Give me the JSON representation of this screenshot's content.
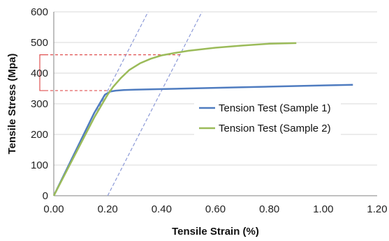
{
  "chart_data": {
    "type": "line",
    "xlabel": "Tensile Strain (%)",
    "ylabel": "Tensile Stress (Mpa)",
    "xlim": [
      0,
      1.2
    ],
    "ylim": [
      0,
      600
    ],
    "x_ticks": [
      "0.00",
      "0.20",
      "0.40",
      "0.60",
      "0.80",
      "1.00",
      "1.20"
    ],
    "y_ticks": [
      "0",
      "100",
      "200",
      "300",
      "400",
      "500",
      "600"
    ],
    "grid": "horizontal",
    "legend_position": "center-right",
    "series": [
      {
        "name": "Tension Test (Sample 1)",
        "color": "#4f7cc0",
        "x": [
          0.0,
          0.05,
          0.1,
          0.15,
          0.19,
          0.21,
          0.23,
          0.26,
          0.3,
          0.4,
          0.5,
          0.6,
          0.7,
          0.8,
          0.9,
          1.0,
          1.11
        ],
        "y": [
          0,
          90,
          180,
          270,
          330,
          340,
          343,
          345,
          346,
          348,
          350,
          352,
          354,
          356,
          358,
          360,
          362
        ]
      },
      {
        "name": "Tension Test (Sample 2)",
        "color": "#9bbb59",
        "x": [
          0.0,
          0.05,
          0.1,
          0.15,
          0.2,
          0.22,
          0.25,
          0.28,
          0.32,
          0.36,
          0.4,
          0.45,
          0.5,
          0.6,
          0.7,
          0.8,
          0.9
        ],
        "y": [
          0,
          85,
          170,
          255,
          330,
          355,
          385,
          410,
          432,
          447,
          458,
          466,
          473,
          483,
          490,
          496,
          498
        ]
      }
    ],
    "offset_lines": [
      {
        "x": [
          0.0,
          0.35
        ],
        "y": [
          0,
          600
        ],
        "color": "#8c9ad8"
      },
      {
        "x": [
          0.2,
          0.55
        ],
        "y": [
          0,
          600
        ],
        "color": "#8c9ad8"
      }
    ],
    "annotation_lines": [
      {
        "y": 460,
        "x_end": 0.47,
        "color": "#e05050"
      },
      {
        "y": 343,
        "x_end": 0.22,
        "color": "#e05050"
      }
    ],
    "bracket": {
      "y_top": 460,
      "y_bottom": 343,
      "color": "#e05050"
    }
  }
}
